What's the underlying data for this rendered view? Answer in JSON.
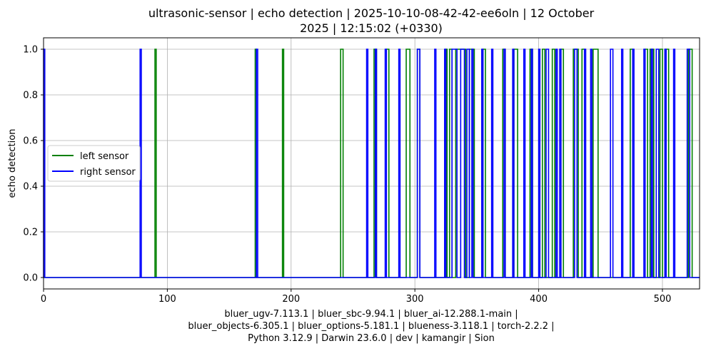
{
  "chart_data": {
    "type": "line",
    "title_lines": [
      "ultrasonic-sensor | echo detection | 2025-10-10-08-42-42-ee6oln | 12 October",
      "2025 | 12:15:02 (+0330)"
    ],
    "xlabel_lines": [
      "bluer_ugv-7.113.1 | bluer_sbc-9.94.1 | bluer_ai-12.288.1-main |",
      "bluer_objects-6.305.1 | bluer_options-5.181.1 | blueness-3.118.1 | torch-2.2.2 |",
      "Python 3.12.9 | Darwin 23.6.0 | dev | kamangir | Sion"
    ],
    "ylabel": "echo detection",
    "xlim": [
      0,
      530
    ],
    "ylim": [
      -0.05,
      1.05
    ],
    "xticks": [
      0,
      100,
      200,
      300,
      400,
      500
    ],
    "yticks": [
      "0.0",
      "0.2",
      "0.4",
      "0.6",
      "0.8",
      "1.0"
    ],
    "grid": true,
    "legend_position": "center-left",
    "series": [
      {
        "name": "left sensor",
        "color": "#008000",
        "pulses": [
          [
            90,
            91
          ],
          [
            171,
            172
          ],
          [
            193,
            194
          ],
          [
            240,
            242
          ],
          [
            267,
            269
          ],
          [
            277,
            279
          ],
          [
            293,
            296
          ],
          [
            302,
            304
          ],
          [
            325,
            326
          ],
          [
            328,
            330
          ],
          [
            333,
            341
          ],
          [
            344,
            348
          ],
          [
            355,
            357
          ],
          [
            371,
            373
          ],
          [
            380,
            383
          ],
          [
            393,
            395
          ],
          [
            403,
            405
          ],
          [
            411,
            413
          ],
          [
            418,
            420
          ],
          [
            428,
            432
          ],
          [
            435,
            437
          ],
          [
            444,
            448
          ],
          [
            474,
            476
          ],
          [
            486,
            488
          ],
          [
            490,
            493
          ],
          [
            498,
            500
          ],
          [
            502,
            505
          ],
          [
            521,
            524
          ]
        ]
      },
      {
        "name": "right sensor",
        "color": "#0000ff",
        "pulses": [
          [
            0,
            1
          ],
          [
            78,
            79
          ],
          [
            172,
            173
          ],
          [
            261,
            262
          ],
          [
            268,
            269
          ],
          [
            276,
            277
          ],
          [
            287,
            288
          ],
          [
            302,
            304
          ],
          [
            316,
            317
          ],
          [
            324,
            325
          ],
          [
            330,
            334
          ],
          [
            337,
            340
          ],
          [
            342,
            344
          ],
          [
            346,
            347
          ],
          [
            354,
            355
          ],
          [
            362,
            363
          ],
          [
            372,
            373
          ],
          [
            379,
            380
          ],
          [
            388,
            389
          ],
          [
            394,
            395
          ],
          [
            400,
            401
          ],
          [
            406,
            408
          ],
          [
            414,
            415
          ],
          [
            417,
            418
          ],
          [
            429,
            431
          ],
          [
            437,
            438
          ],
          [
            442,
            443
          ],
          [
            458,
            460
          ],
          [
            467,
            468
          ],
          [
            476,
            477
          ],
          [
            485,
            486
          ],
          [
            491,
            492
          ],
          [
            495,
            497
          ],
          [
            502,
            503
          ],
          [
            509,
            510
          ],
          [
            520,
            522
          ]
        ]
      }
    ]
  }
}
